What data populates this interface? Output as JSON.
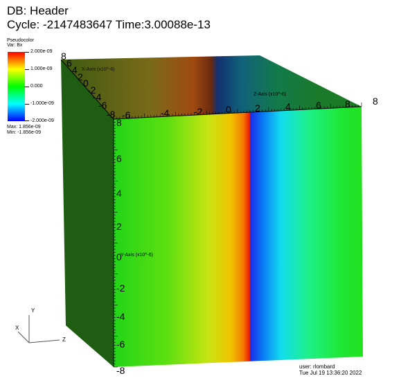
{
  "header": {
    "db": "DB: Header",
    "cycle": "Cycle: -2147483647 Time:3.00088e-13"
  },
  "legend": {
    "title": "Pseudocolor",
    "var": "Var: Bx",
    "ticks": [
      "2.000e-09",
      "1.000e-09",
      "0.000",
      "-1.000e-09",
      "-2.000e-09"
    ],
    "max": "Max: 1.856e-09",
    "min": "Min: -1.856e-09"
  },
  "axes": {
    "y_title": "Y-Axis (x10^-6)",
    "z_title": "Z-Axis (x10^-6)",
    "x_title": "X-Axis (x10^-6)",
    "y_ticks": [
      "8",
      "6",
      "4",
      "2",
      "0",
      "-2",
      "-4",
      "-6",
      "-8"
    ],
    "z_ticks": [
      "-6",
      "-4",
      "-2",
      "0",
      "2",
      "4",
      "6",
      "8"
    ],
    "x_ticks": [
      "8",
      "6",
      "4",
      "2",
      "0",
      "-2",
      "-4",
      "-6",
      "-8"
    ]
  },
  "triad": {
    "x": "X",
    "y": "Y",
    "z": "Z"
  },
  "footer": {
    "user": "user: rlombard",
    "date": "Tue Jul 19 13:36:20 2022"
  },
  "colors": {
    "left_face": "#1f5d12",
    "field_green": "#22e01c"
  }
}
